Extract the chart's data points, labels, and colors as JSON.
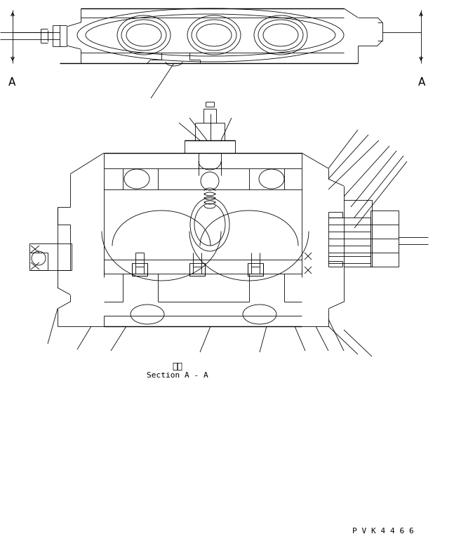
{
  "bg_color": "#ffffff",
  "lc": "#000000",
  "lw": 0.6,
  "lw_thick": 1.0,
  "label_danmen": "断面",
  "label_section": "Section A - A",
  "label_pvk": "P V K 4 4 6 6",
  "label_A": "A",
  "figsize": [
    6.47,
    7.71
  ],
  "dpi": 100
}
